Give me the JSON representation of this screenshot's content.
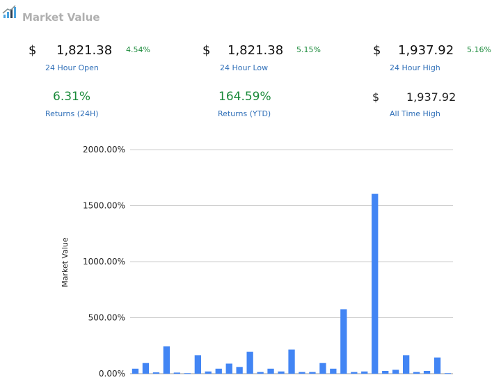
{
  "header": {
    "title": "Market Value",
    "icon": "bar-chart-icon"
  },
  "stats": {
    "open": {
      "currency": "$",
      "value": "1,821.38",
      "change": "4.54%",
      "label": "24 Hour Open"
    },
    "low": {
      "currency": "$",
      "value": "1,821.38",
      "change": "5.15%",
      "label": "24 Hour Low"
    },
    "high": {
      "currency": "$",
      "value": "1,937.92",
      "change": "5.16%",
      "label": "24 Hour High"
    },
    "returns_24h": {
      "value": "6.31%",
      "label": "Returns (24H)"
    },
    "returns_ytd": {
      "value": "164.59%",
      "label": "Returns (YTD)"
    },
    "ath": {
      "currency": "$",
      "value": "1,937.92",
      "label": "All Time High"
    }
  },
  "colors": {
    "bar": "#4285f4",
    "positive": "#1a8a3a",
    "label": "#2f6fb8",
    "title": "#b0b0b0"
  },
  "chart_data": {
    "type": "bar",
    "ylabel": "Market Value",
    "ylim": [
      0,
      2000
    ],
    "yticks": [
      "0.00%",
      "500.00%",
      "1000.00%",
      "1500.00%",
      "2000.00%"
    ],
    "grid": true,
    "values": [
      45,
      95,
      12,
      245,
      10,
      5,
      165,
      20,
      45,
      90,
      60,
      195,
      15,
      45,
      20,
      215,
      15,
      15,
      95,
      45,
      575,
      15,
      20,
      1605,
      25,
      35,
      165,
      15,
      25,
      145,
      5
    ]
  }
}
